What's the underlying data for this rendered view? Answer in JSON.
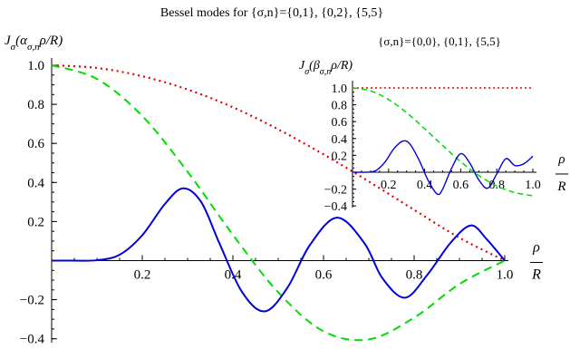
{
  "chart_data": [
    {
      "id": "main",
      "type": "line",
      "title": "Bessel modes for {σ,n}={0,1}, {0,2}, {5,5}",
      "ylabel_html": "J<tspan font-style='italic' baseline-shift='sub' font-size='11'>σ</tspan>(α<tspan font-style='italic' baseline-shift='sub' font-size='11'>σ,n</tspan>ρ/R)",
      "xlabel_num": "ρ",
      "xlabel_den": "R",
      "xlim": [
        0,
        1.0
      ],
      "ylim": [
        -0.42,
        1.02
      ],
      "x_ticks": [
        0.2,
        0.4,
        0.6,
        0.8,
        1.0
      ],
      "x_tick_labels": [
        "0.2",
        "0.4",
        "0.6",
        "0.8",
        "1.0"
      ],
      "y_ticks": [
        -0.4,
        -0.2,
        0.2,
        0.4,
        0.6,
        0.8,
        1.0
      ],
      "y_tick_labels": [
        "-0.4",
        "-0.2",
        "0.2",
        "0.4",
        "0.6",
        "0.8",
        "1.0"
      ],
      "series": [
        {
          "color": "#e60000",
          "dash": "2,4",
          "width": 2.2,
          "x": [
            0,
            0.1,
            0.2,
            0.3,
            0.4,
            0.5,
            0.6,
            0.7,
            0.8,
            0.9,
            1.0
          ],
          "y": [
            1.0,
            0.986,
            0.944,
            0.876,
            0.785,
            0.672,
            0.544,
            0.405,
            0.26,
            0.117,
            0.0
          ]
        },
        {
          "color": "#00dc00",
          "dash": "9,6",
          "width": 2.0,
          "x": [
            0,
            0.1,
            0.2,
            0.3,
            0.4,
            0.5,
            0.6,
            0.7,
            0.8,
            0.9,
            1.0
          ],
          "y": [
            1.0,
            0.93,
            0.74,
            0.455,
            0.132,
            -0.162,
            -0.362,
            -0.403,
            -0.292,
            -0.12,
            0.0
          ]
        },
        {
          "color": "#0000dc",
          "dash": "none",
          "width": 2.0,
          "x": [
            0,
            0.05,
            0.1,
            0.15,
            0.2,
            0.25,
            0.29,
            0.33,
            0.37,
            0.42,
            0.47,
            0.52,
            0.57,
            0.63,
            0.69,
            0.73,
            0.78,
            0.83,
            0.88,
            0.925,
            0.96,
            1.0
          ],
          "y": [
            0.0,
            0.0,
            0.002,
            0.03,
            0.13,
            0.29,
            0.37,
            0.3,
            0.09,
            -0.16,
            -0.26,
            -0.14,
            0.08,
            0.22,
            0.09,
            -0.09,
            -0.19,
            -0.07,
            0.09,
            0.18,
            0.11,
            0.0
          ]
        }
      ]
    },
    {
      "id": "inset",
      "type": "line",
      "title": "{σ,n}={0,0}, {0,1}, {5,5}",
      "ylabel_html": "J<tspan font-style='italic' baseline-shift='sub' font-size='10'>σ</tspan>(β<tspan font-style='italic' baseline-shift='sub' font-size='10'>σ,n</tspan>ρ/R)",
      "xlabel_num": "ρ",
      "xlabel_den": "R",
      "xlim": [
        0,
        1.0
      ],
      "ylim": [
        -0.42,
        1.02
      ],
      "x_ticks": [
        0.2,
        0.4,
        0.6,
        0.8,
        1.0
      ],
      "x_tick_labels": [
        "0.2",
        "0.4",
        "0.6",
        "0.8",
        "1.0"
      ],
      "y_ticks": [
        -0.4,
        -0.2,
        0.2,
        0.4,
        0.6,
        0.8,
        1.0
      ],
      "y_tick_labels": [
        "-0.4",
        "-0.2",
        "0.2",
        "0.4",
        "0.6",
        "0.8",
        "1.0"
      ],
      "series": [
        {
          "color": "#e60000",
          "dash": "2,3",
          "width": 1.6,
          "x": [
            0,
            1.0
          ],
          "y": [
            1.0,
            1.0
          ]
        },
        {
          "color": "#00dc00",
          "dash": "6,4",
          "width": 1.5,
          "x": [
            0,
            0.1,
            0.2,
            0.3,
            0.4,
            0.5,
            0.6,
            0.7,
            0.8,
            0.9,
            1.0
          ],
          "y": [
            1.0,
            0.965,
            0.862,
            0.706,
            0.517,
            0.316,
            0.125,
            -0.038,
            -0.163,
            -0.241,
            -0.28
          ]
        },
        {
          "color": "#0000dc",
          "dash": "none",
          "width": 1.4,
          "x": [
            0,
            0.08,
            0.13,
            0.18,
            0.23,
            0.28,
            0.32,
            0.37,
            0.42,
            0.47,
            0.5,
            0.55,
            0.6,
            0.65,
            0.7,
            0.75,
            0.8,
            0.85,
            0.9,
            0.95,
            1.0
          ],
          "y": [
            0.0,
            0.0,
            0.02,
            0.12,
            0.28,
            0.37,
            0.33,
            0.14,
            -0.1,
            -0.26,
            -0.2,
            0.05,
            0.22,
            0.11,
            -0.09,
            -0.19,
            -0.02,
            0.16,
            0.08,
            0.1,
            0.19
          ]
        }
      ]
    }
  ]
}
